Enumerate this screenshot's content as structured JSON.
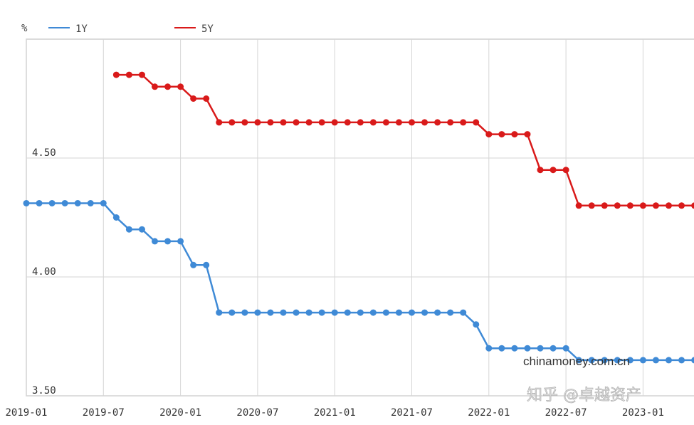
{
  "chart_data": {
    "type": "line",
    "ylabel": "%",
    "ylim": [
      3.5,
      5.0
    ],
    "yticks": [
      "3.50",
      "4.00",
      "4.50"
    ],
    "xticks": [
      "2019-01",
      "2019-07",
      "2020-01",
      "2020-07",
      "2021-01",
      "2021-07",
      "2022-01",
      "2022-07",
      "2023-01"
    ],
    "grid": true,
    "legend_placement": "top-left",
    "x": [
      "2019-01",
      "2019-02",
      "2019-03",
      "2019-04",
      "2019-05",
      "2019-06",
      "2019-07",
      "2019-08",
      "2019-09",
      "2019-10",
      "2019-11",
      "2019-12",
      "2020-01",
      "2020-02",
      "2020-03",
      "2020-04",
      "2020-05",
      "2020-06",
      "2020-07",
      "2020-08",
      "2020-09",
      "2020-10",
      "2020-11",
      "2020-12",
      "2021-01",
      "2021-02",
      "2021-03",
      "2021-04",
      "2021-05",
      "2021-06",
      "2021-07",
      "2021-08",
      "2021-09",
      "2021-10",
      "2021-11",
      "2021-12",
      "2022-01",
      "2022-02",
      "2022-03",
      "2022-04",
      "2022-05",
      "2022-06",
      "2022-07",
      "2022-08",
      "2022-09",
      "2022-10",
      "2022-11",
      "2022-12",
      "2023-01",
      "2023-02",
      "2023-03",
      "2023-04",
      "2023-05"
    ],
    "series": [
      {
        "name": "1Y",
        "color": "#3f8ad6",
        "values": [
          4.31,
          4.31,
          4.31,
          4.31,
          4.31,
          4.31,
          4.31,
          4.25,
          4.2,
          4.2,
          4.15,
          4.15,
          4.15,
          4.05,
          4.05,
          3.85,
          3.85,
          3.85,
          3.85,
          3.85,
          3.85,
          3.85,
          3.85,
          3.85,
          3.85,
          3.85,
          3.85,
          3.85,
          3.85,
          3.85,
          3.85,
          3.85,
          3.85,
          3.85,
          3.85,
          3.8,
          3.7,
          3.7,
          3.7,
          3.7,
          3.7,
          3.7,
          3.7,
          3.65,
          3.65,
          3.65,
          3.65,
          3.65,
          3.65,
          3.65,
          3.65,
          3.65,
          3.65
        ]
      },
      {
        "name": "5Y",
        "color": "#d91a1a",
        "values": [
          null,
          null,
          null,
          null,
          null,
          null,
          null,
          4.85,
          4.85,
          4.85,
          4.8,
          4.8,
          4.8,
          4.75,
          4.75,
          4.65,
          4.65,
          4.65,
          4.65,
          4.65,
          4.65,
          4.65,
          4.65,
          4.65,
          4.65,
          4.65,
          4.65,
          4.65,
          4.65,
          4.65,
          4.65,
          4.65,
          4.65,
          4.65,
          4.65,
          4.65,
          4.6,
          4.6,
          4.6,
          4.6,
          4.45,
          4.45,
          4.45,
          4.3,
          4.3,
          4.3,
          4.3,
          4.3,
          4.3,
          4.3,
          4.3,
          4.3,
          4.3
        ]
      }
    ],
    "watermarks": [
      "chinamoney.com.cn",
      "知乎 @卓越资产"
    ]
  }
}
